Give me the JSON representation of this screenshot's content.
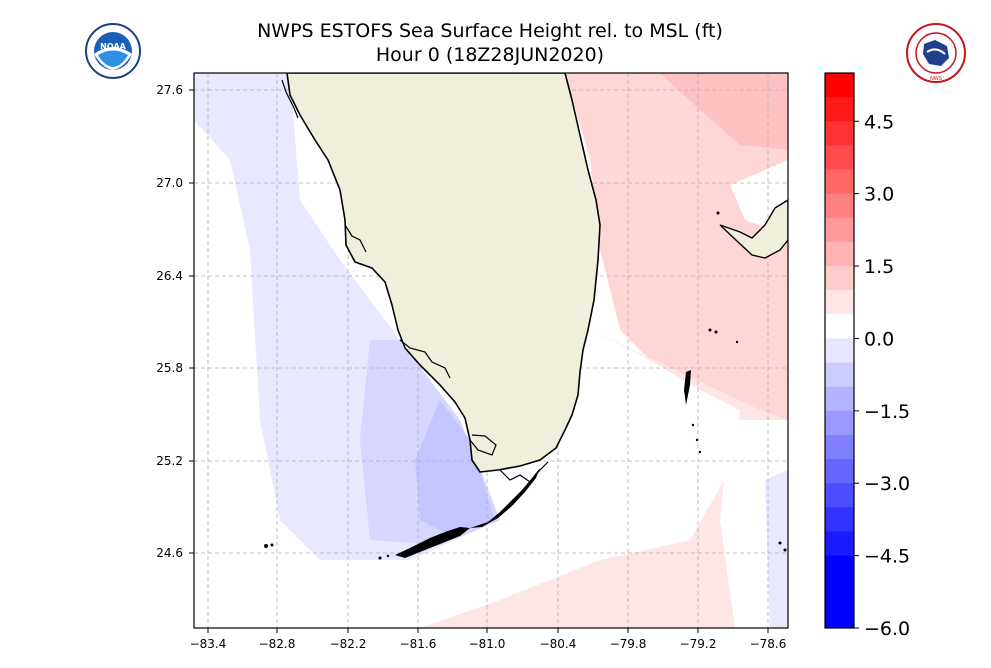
{
  "header": {
    "title": "NWPS ESTOFS Sea Surface Height rel. to MSL (ft)",
    "subtitle": "Hour 0 (18Z28JUN2020)"
  },
  "logos": {
    "left": {
      "text": "NOAA",
      "ring_text": "U.S. DEPARTMENT OF COMMERCE",
      "icon": "noaa-logo"
    },
    "right": {
      "text": "NWS",
      "ring_text": "NATIONAL WEATHER SERVICE",
      "icon": "nws-logo"
    }
  },
  "map": {
    "longitude_ticks": [
      "−83.4",
      "−82.8",
      "−82.2",
      "−81.6",
      "−81.0",
      "−80.4",
      "−79.8",
      "−79.2",
      "−78.6"
    ],
    "latitude_ticks": [
      "27.6",
      "27.0",
      "26.4",
      "25.8",
      "25.2",
      "24.6"
    ],
    "lon_range": [
      -83.55,
      -78.55
    ],
    "lat_range": [
      24.1,
      27.7
    ],
    "colors": {
      "land": "#efefdc",
      "coast": "#000000",
      "grid": "#b0b0b0"
    }
  },
  "colorbar": {
    "labels": [
      "4.5",
      "3.0",
      "1.5",
      "0.0",
      "−1.5",
      "−3.0",
      "−4.5",
      "−6.0"
    ],
    "levels": [
      5.5,
      5.0,
      4.5,
      4.0,
      3.5,
      3.0,
      2.5,
      2.0,
      1.5,
      1.0,
      0.5,
      0.0,
      -0.5,
      -1.0,
      -1.5,
      -2.0,
      -2.5,
      -3.0,
      -3.5,
      -4.0,
      -4.5,
      -5.0,
      -5.5,
      -6.0
    ],
    "colors": [
      "#ff0000",
      "#ff1a1a",
      "#ff3333",
      "#ff4d4d",
      "#ff6666",
      "#ff8080",
      "#ff9999",
      "#ffb3b3",
      "#ffcccc",
      "#ffe6e6",
      "#ffffff",
      "#e6e6ff",
      "#ccccff",
      "#b3b3ff",
      "#9999ff",
      "#8080ff",
      "#6666ff",
      "#4d4dff",
      "#3333ff",
      "#1a1aff",
      "#0000ff",
      "#0000ff",
      "#0000ff"
    ]
  }
}
